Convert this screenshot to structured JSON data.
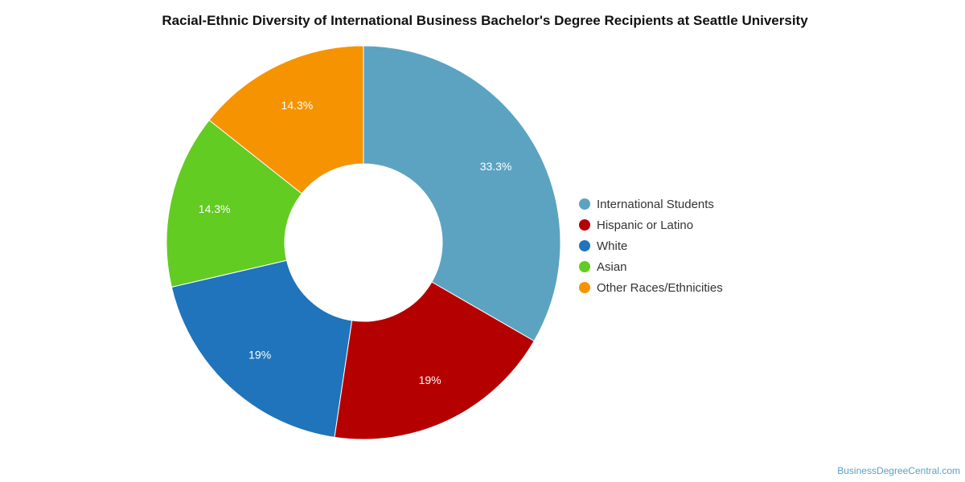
{
  "chart_data": {
    "type": "pie",
    "variant": "donut",
    "title": "Racial-Ethnic Diversity of International Business Bachelor's Degree Recipients at Seattle University",
    "categories": [
      "International Students",
      "Hispanic or Latino",
      "White",
      "Asian",
      "Other Races/Ethnicities"
    ],
    "values": [
      33.3,
      19,
      19,
      14.3,
      14.3
    ],
    "data_labels": [
      "33.3%",
      "19%",
      "19%",
      "14.3%",
      "14.3%"
    ],
    "colors": [
      "#5ca3c1",
      "#b50000",
      "#1f74bb",
      "#62cc22",
      "#f69300"
    ],
    "legend_placement": "right",
    "label_color": "#ffffff"
  },
  "watermark": "BusinessDegreeCentral.com"
}
